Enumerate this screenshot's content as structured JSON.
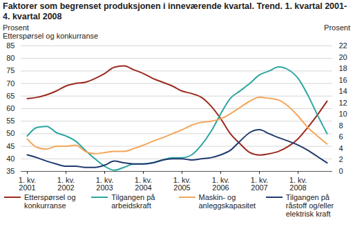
{
  "chart_data": {
    "type": "line",
    "title": "Faktorer som begrenset produksjonen i inneværende kvartal. Trend. 1. kvartal 2001-4. kvartal 2008",
    "ylabel": "Prosent\nEtterspørsel og konkurranse",
    "y2label": "Prosent",
    "categories": [
      "1. kv.\n2001",
      null,
      null,
      null,
      "1. kv.\n2002",
      null,
      null,
      null,
      "1. kv.\n2003",
      null,
      null,
      null,
      "1. kv.\n2004",
      null,
      null,
      null,
      "1. kv.\n2005",
      null,
      null,
      null,
      "1. kv.\n2006",
      null,
      null,
      null,
      "1. kv.\n2007",
      null,
      null,
      null,
      "1. kv.\n2008",
      null,
      null,
      null
    ],
    "ylim": [
      35,
      85
    ],
    "yticks": [
      35,
      40,
      45,
      50,
      55,
      60,
      65,
      70,
      75,
      80,
      85
    ],
    "y2lim": [
      0,
      22
    ],
    "y2ticks": [
      0,
      2,
      4,
      6,
      8,
      10,
      12,
      14,
      16,
      18,
      20,
      22
    ],
    "grid": true,
    "legend": "bottom",
    "series": [
      {
        "name": "Etterspørsel og konkurranse",
        "color": "#9b2a1e",
        "values": [
          64,
          64.5,
          65.5,
          67,
          69,
          70,
          70.5,
          72,
          74,
          76.5,
          77,
          75.5,
          74,
          72,
          70.5,
          69,
          67,
          66,
          64.5,
          61,
          56,
          50,
          46,
          42.5,
          41.5,
          42,
          43,
          45,
          48,
          52.5,
          57.5,
          63
        ]
      },
      {
        "name": "Tilgangen på arbeidskraft",
        "color": "#2aa5a0",
        "axis": "y2",
        "values": [
          6.2,
          7.7,
          7.9,
          6.8,
          6.2,
          5.3,
          3.7,
          2.2,
          0.9,
          0.2,
          0.7,
          1.3,
          1.3,
          1.5,
          2.0,
          2.4,
          2.4,
          2.9,
          4.6,
          7.0,
          10.1,
          12.8,
          14.1,
          15.4,
          16.9,
          17.6,
          18.3,
          17.8,
          16.3,
          13.4,
          9.9,
          6.6
        ]
      },
      {
        "name": "Maskin- og anleggskapasitet",
        "color": "#f5a55a",
        "axis": "y2",
        "values": [
          5.7,
          4.2,
          3.9,
          4.4,
          4.4,
          4.6,
          3.5,
          3.1,
          3.3,
          3.5,
          3.5,
          4.0,
          4.6,
          5.3,
          5.9,
          6.6,
          7.3,
          8.1,
          8.6,
          8.8,
          9.2,
          10.1,
          11.2,
          12.3,
          13.0,
          12.8,
          12.5,
          11.4,
          9.7,
          7.7,
          6.2,
          4.8
        ]
      },
      {
        "name": "Tilgangen på råstoff og/eller elektrisk kraft",
        "color": "#1e3a6e",
        "axis": "y2",
        "values": [
          2.9,
          2.4,
          1.8,
          1.3,
          0.9,
          0.9,
          0.7,
          0.7,
          1.1,
          1.8,
          1.5,
          1.3,
          1.3,
          1.5,
          2.0,
          2.2,
          2.2,
          2.0,
          2.2,
          2.4,
          2.9,
          3.7,
          5.3,
          6.8,
          7.3,
          6.6,
          5.9,
          5.3,
          4.6,
          3.7,
          2.6,
          1.5
        ]
      }
    ]
  }
}
